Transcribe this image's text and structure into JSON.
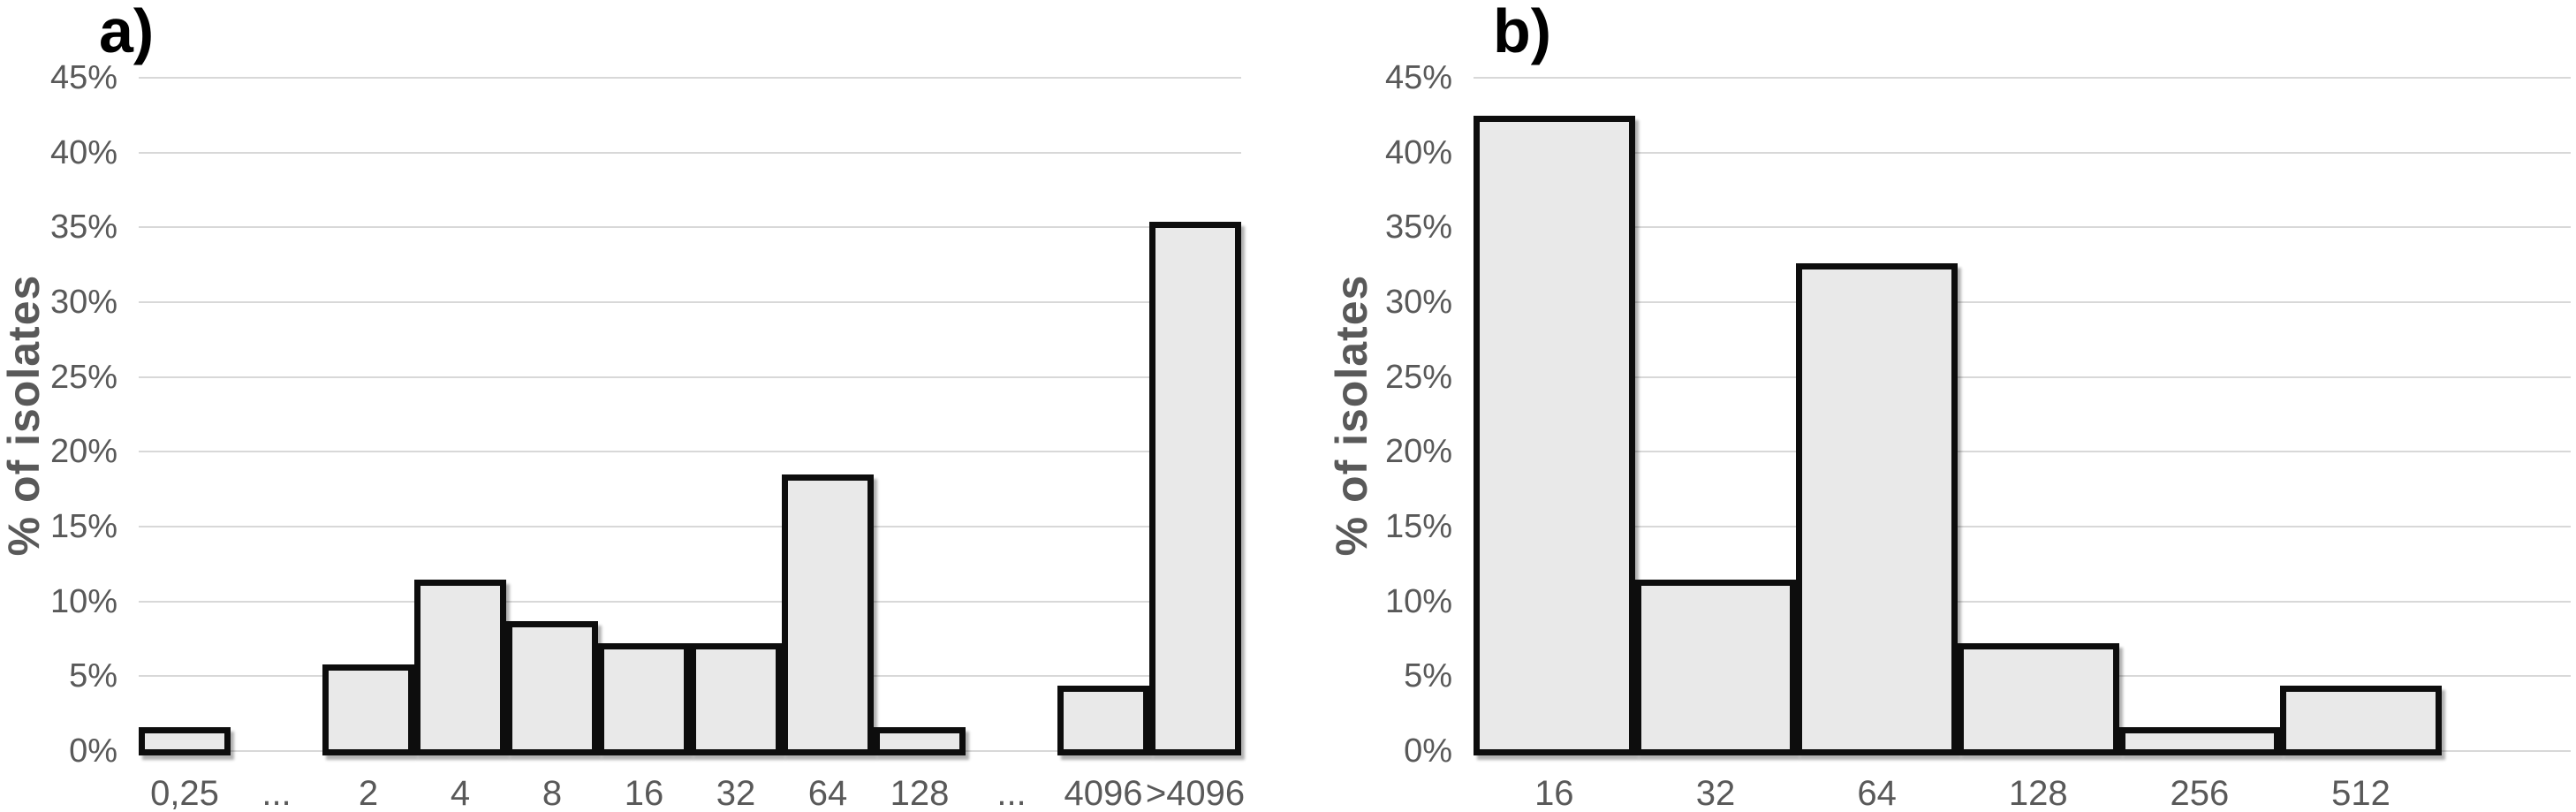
{
  "colors": {
    "bar_fill": "#e9e9e9",
    "bar_border": "#0d0d0d",
    "gridline": "#d8d8d8",
    "tick_label": "#595959",
    "panel_label": "#000000",
    "background": "#ffffff"
  },
  "chart_data": [
    {
      "type": "bar",
      "panel_label": "a)",
      "title": "",
      "xlabel": "",
      "ylabel": "% of isolates",
      "categories": [
        "0,25",
        "...",
        "2",
        "4",
        "8",
        "16",
        "32",
        "64",
        "128",
        "...",
        "4096",
        ">4096"
      ],
      "values": [
        1.4,
        null,
        5.6,
        11.3,
        8.5,
        7.0,
        7.0,
        18.3,
        1.4,
        null,
        4.2,
        35.2
      ],
      "ylim": [
        0,
        45
      ],
      "ytick_step": 5,
      "ytick_labels": [
        "0%",
        "5%",
        "10%",
        "15%",
        "20%",
        "25%",
        "30%",
        "35%",
        "40%",
        "45%"
      ],
      "grid": true,
      "legend": "none",
      "bar_gap": 0
    },
    {
      "type": "bar",
      "panel_label": "b)",
      "title": "",
      "xlabel": "",
      "ylabel": "% of isolates",
      "categories": [
        "16",
        "32",
        "64",
        "128",
        "256",
        "512"
      ],
      "values": [
        42.3,
        11.3,
        32.4,
        7.0,
        1.4,
        4.2
      ],
      "ylim": [
        0,
        45
      ],
      "ytick_step": 5,
      "ytick_labels": [
        "0%",
        "5%",
        "10%",
        "15%",
        "20%",
        "25%",
        "30%",
        "35%",
        "40%",
        "45%"
      ],
      "grid": true,
      "legend": "none",
      "bar_gap": 0
    }
  ]
}
